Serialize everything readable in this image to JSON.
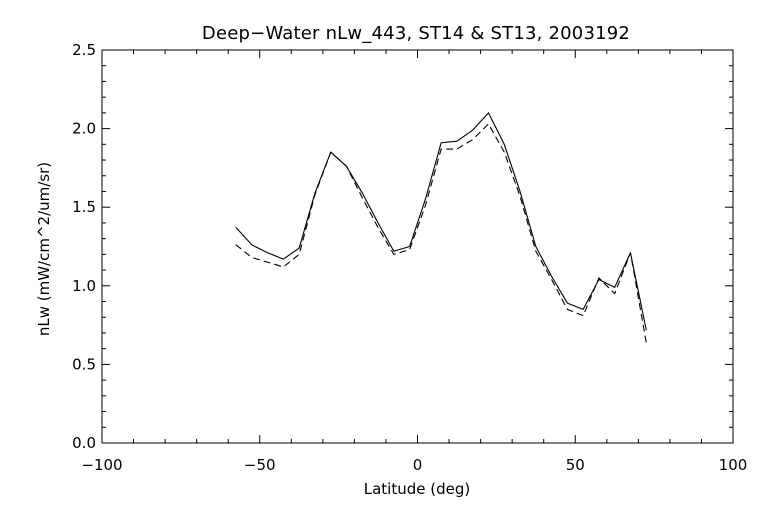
{
  "chart_data": {
    "type": "line",
    "title": "Deep−Water nLw_443, ST14 & ST13, 2003192",
    "xlabel": "Latitude (deg)",
    "ylabel": "nLw (mW/cm^2/um/sr)",
    "xlim": [
      -100,
      100
    ],
    "ylim": [
      0.0,
      2.5
    ],
    "x_major_ticks": [
      -100,
      -50,
      0,
      50,
      100
    ],
    "x_tick_labels": [
      "−100",
      "−50",
      "0",
      "50",
      "100"
    ],
    "y_major_ticks": [
      0.0,
      0.5,
      1.0,
      1.5,
      2.0,
      2.5
    ],
    "y_tick_labels": [
      "0.0",
      "0.5",
      "1.0",
      "1.5",
      "2.0",
      "2.5"
    ],
    "grid": false,
    "series": [
      {
        "line_style": "solid",
        "color": "#000000",
        "x": [
          -57.5,
          -52.5,
          -47.5,
          -42.5,
          -37.5,
          -32.5,
          -27.5,
          -22.5,
          -17.5,
          -12.5,
          -7.5,
          -2.5,
          2.5,
          7.5,
          12.5,
          17.5,
          22.5,
          27.5,
          32.5,
          37.5,
          42.5,
          47.5,
          52.5,
          57.5,
          62.5,
          67.5,
          72.5
        ],
        "y": [
          1.37,
          1.26,
          1.21,
          1.17,
          1.24,
          1.59,
          1.85,
          1.76,
          1.59,
          1.4,
          1.22,
          1.25,
          1.55,
          1.91,
          1.92,
          1.99,
          2.1,
          1.9,
          1.6,
          1.25,
          1.06,
          0.89,
          0.85,
          1.04,
          0.99,
          1.21,
          0.72
        ]
      },
      {
        "line_style": "dashed",
        "color": "#000000",
        "x": [
          -57.5,
          -52.5,
          -47.5,
          -42.5,
          -37.5,
          -32.5,
          -27.5,
          -22.5,
          -17.5,
          -12.5,
          -7.5,
          -2.5,
          2.5,
          7.5,
          12.5,
          17.5,
          22.5,
          27.5,
          32.5,
          37.5,
          42.5,
          47.5,
          52.5,
          57.5,
          62.5,
          67.5,
          72.5
        ],
        "y": [
          1.26,
          1.18,
          1.15,
          1.12,
          1.2,
          1.58,
          1.85,
          1.76,
          1.56,
          1.37,
          1.2,
          1.23,
          1.51,
          1.87,
          1.87,
          1.93,
          2.03,
          1.85,
          1.57,
          1.22,
          1.04,
          0.85,
          0.81,
          1.05,
          0.95,
          1.21,
          0.64
        ]
      }
    ]
  }
}
